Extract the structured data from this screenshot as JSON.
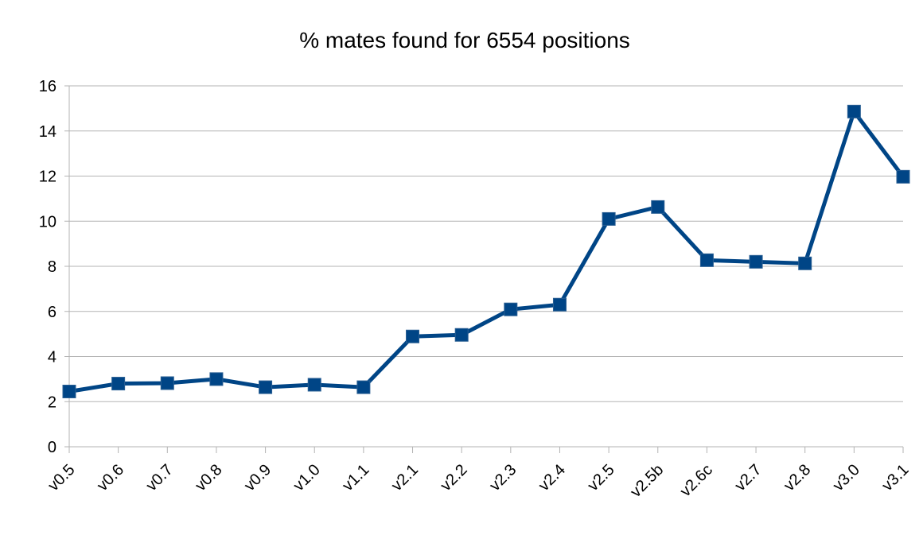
{
  "chart_data": {
    "type": "line",
    "title": "% mates found for 6554 positions",
    "categories": [
      "v0.5",
      "v0.6",
      "v0.7",
      "v0.8",
      "v0.9",
      "v1.0",
      "v1.1",
      "v2.1",
      "v2.2",
      "v2.3",
      "v2.4",
      "v2.5",
      "v2.5b",
      "v2.6c",
      "v2.7",
      "v2.8",
      "v3.0",
      "v3.1"
    ],
    "series": [
      {
        "name": "% mates found",
        "color": "#004586",
        "values": [
          2.45,
          2.8,
          2.82,
          3.0,
          2.64,
          2.75,
          2.64,
          4.89,
          4.96,
          6.09,
          6.3,
          10.1,
          10.63,
          8.27,
          8.2,
          8.13,
          14.86,
          11.97
        ]
      }
    ],
    "ylim": [
      0,
      16
    ],
    "yticks": [
      0,
      2,
      4,
      6,
      8,
      10,
      12,
      14,
      16
    ],
    "grid": true
  }
}
